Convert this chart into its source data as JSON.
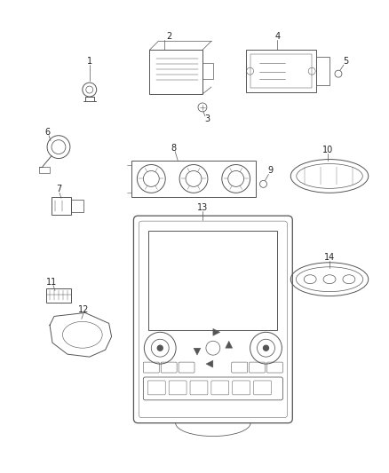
{
  "background_color": "#ffffff",
  "fig_width": 4.38,
  "fig_height": 5.33,
  "dpi": 100,
  "line_color": "#555555",
  "label_color": "#222222",
  "label_fontsize": 7.0,
  "lw": 0.7
}
